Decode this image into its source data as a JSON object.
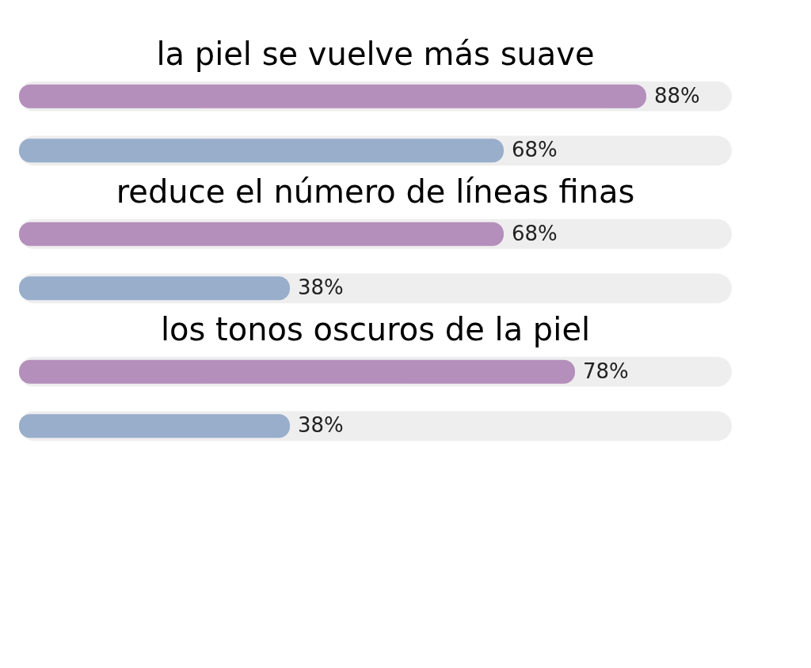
{
  "chart_data": {
    "type": "bar",
    "orientation": "horizontal",
    "categories": [
      "la piel se vuelve más suave",
      "reduce el número de líneas finas",
      "los tonos oscuros de la piel"
    ],
    "xlim": [
      0,
      100
    ],
    "tick_labels": false,
    "series": [
      {
        "color": "#b48fbb",
        "values": [
          88,
          68,
          78
        ],
        "value_labels": [
          "88%",
          "68%",
          "78%"
        ]
      },
      {
        "color": "#98aecb",
        "values": [
          68,
          38,
          38
        ],
        "value_labels": [
          "68%",
          "38%",
          "38%"
        ]
      }
    ]
  }
}
